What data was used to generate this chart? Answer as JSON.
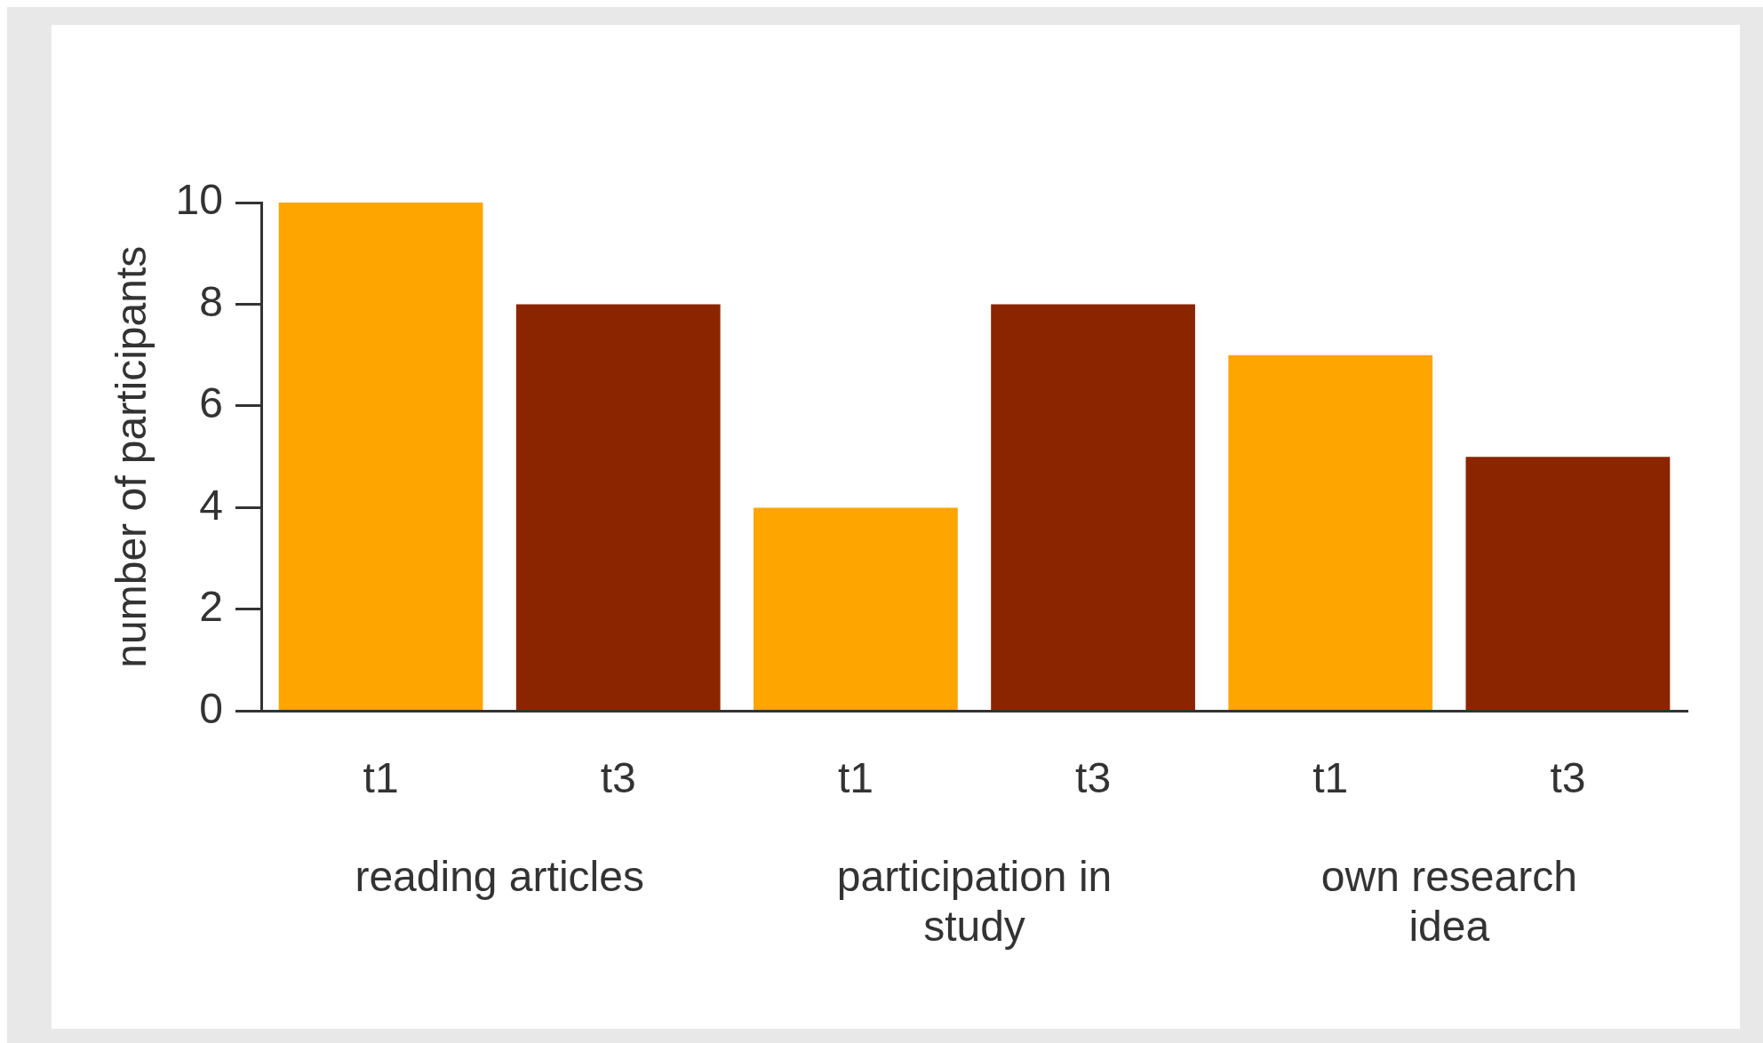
{
  "chart_data": {
    "type": "bar",
    "categories": [
      "t1",
      "t3",
      "t1",
      "t3",
      "t1",
      "t3"
    ],
    "values": [
      10,
      8,
      4,
      8,
      7,
      5
    ],
    "colors": [
      "#ffa500",
      "#8b2500",
      "#ffa500",
      "#8b2500",
      "#ffa500",
      "#8b2500"
    ],
    "ylabel": "number of participants",
    "ylim": [
      0,
      10
    ],
    "yticks": [
      0,
      2,
      4,
      6,
      8,
      10
    ],
    "grid": false,
    "legend": false,
    "annotations": [
      "reading articles",
      "participation in study",
      "own research idea"
    ]
  }
}
